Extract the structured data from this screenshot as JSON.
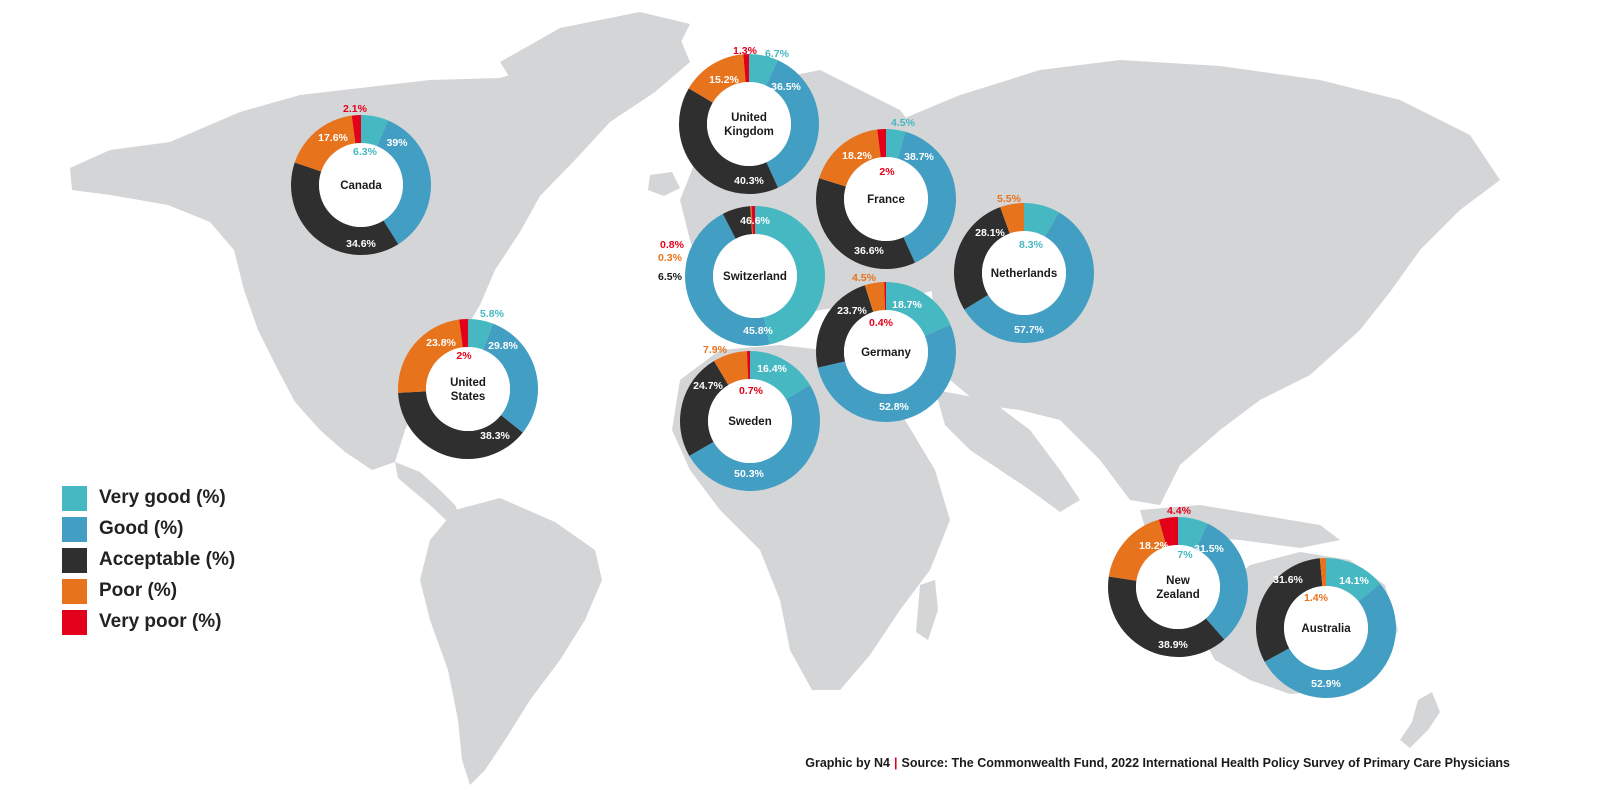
{
  "categories": [
    "Very good (%)",
    "Good (%)",
    "Acceptable (%)",
    "Poor (%)",
    "Very poor (%)"
  ],
  "colors": {
    "very_good": "#46b8c1",
    "good": "#439ec3",
    "acceptable": "#2f2f2f",
    "poor": "#e8731d",
    "very_poor": "#e3001b",
    "land": "#d4d5d7"
  },
  "legend": {
    "very_good": "Very good (%)",
    "good": "Good (%)",
    "acceptable": "Acceptable (%)",
    "poor": "Poor (%)",
    "very_poor": "Very poor (%)"
  },
  "credit": {
    "author": "Graphic by N4",
    "source": "Source: The Commonwealth Fund, 2022 International Health Policy Survey of Primary Care Physicians"
  },
  "chart_data": [
    {
      "type": "pie",
      "country": [
        "Canada"
      ],
      "values": [
        6.3,
        34.6,
        39,
        17.6,
        2.1
      ],
      "labels": [
        "6.3%",
        "34.6%",
        "39%",
        "17.6%",
        "2.1%"
      ]
    },
    {
      "type": "pie",
      "country": [
        "United",
        "States"
      ],
      "values": [
        5.8,
        29.8,
        38.3,
        23.8,
        2
      ],
      "labels": [
        "5.8%",
        "29.8%",
        "38.3%",
        "23.8%",
        "2%"
      ]
    },
    {
      "type": "pie",
      "country": [
        "United",
        "Kingdom"
      ],
      "values": [
        6.7,
        36.5,
        40.3,
        15.2,
        1.3
      ],
      "labels": [
        "6.7%",
        "36.5%",
        "40.3%",
        "15.2%",
        "1.3%"
      ]
    },
    {
      "type": "pie",
      "country": [
        "France"
      ],
      "values": [
        4.5,
        38.7,
        36.6,
        18.2,
        2
      ],
      "labels": [
        "4.5%",
        "38.7%",
        "36.6%",
        "18.2%",
        "2%"
      ]
    },
    {
      "type": "pie",
      "country": [
        "Switzerland"
      ],
      "values": [
        46.6,
        45.8,
        6.5,
        0.3,
        0.8
      ],
      "labels": [
        "46.6%",
        "45.8%",
        "6.5%",
        "0.3%",
        "0.8%"
      ]
    },
    {
      "type": "pie",
      "country": [
        "Netherlands"
      ],
      "values": [
        8.3,
        57.7,
        28.1,
        5.5,
        0
      ],
      "labels": [
        "8.3%",
        "57.7%",
        "28.1%",
        "5.5%",
        ""
      ]
    },
    {
      "type": "pie",
      "country": [
        "Germany"
      ],
      "values": [
        18.7,
        52.8,
        23.7,
        4.5,
        0.4
      ],
      "labels": [
        "18.7%",
        "52.8%",
        "23.7%",
        "4.5%",
        "0.4%"
      ]
    },
    {
      "type": "pie",
      "country": [
        "Sweden"
      ],
      "values": [
        16.4,
        50.3,
        24.7,
        7.9,
        0.7
      ],
      "labels": [
        "16.4%",
        "50.3%",
        "24.7%",
        "7.9%",
        "0.7%"
      ]
    },
    {
      "type": "pie",
      "country": [
        "New",
        "Zealand"
      ],
      "values": [
        7,
        31.5,
        38.9,
        18.2,
        4.4
      ],
      "labels": [
        "7%",
        "31.5%",
        "38.9%",
        "18.2%",
        "4.4%"
      ]
    },
    {
      "type": "pie",
      "country": [
        "Australia"
      ],
      "values": [
        14.1,
        52.9,
        31.6,
        1.4,
        0
      ],
      "labels": [
        "14.1%",
        "52.9%",
        "31.6%",
        "1.4%",
        ""
      ]
    }
  ]
}
